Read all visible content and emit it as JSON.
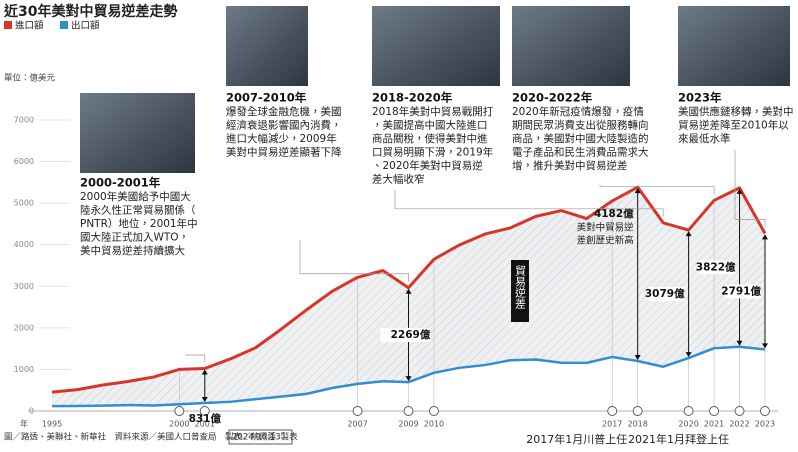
{
  "chart_data": {
    "type": "line",
    "title": "近30年美對中貿易逆差走勢",
    "unit_label": "單位：億美元",
    "x_label": "年",
    "x": [
      1995,
      1996,
      1997,
      1998,
      1999,
      2000,
      2001,
      2002,
      2003,
      2004,
      2005,
      2006,
      2007,
      2008,
      2009,
      2010,
      2011,
      2012,
      2013,
      2014,
      2015,
      2016,
      2017,
      2018,
      2019,
      2020,
      2021,
      2022,
      2023
    ],
    "series": [
      {
        "name": "進口額",
        "color": "#d7352a",
        "values": [
          455,
          515,
          626,
          712,
          818,
          1000,
          1023,
          1252,
          1524,
          1967,
          2435,
          2878,
          3215,
          3378,
          2964,
          3650,
          3994,
          4256,
          4404,
          4682,
          4822,
          4629,
          5054,
          5385,
          4527,
          4352,
          5065,
          5368,
          4272
        ]
      },
      {
        "name": "出口額",
        "color": "#2f8fcf",
        "values": [
          117,
          120,
          128,
          143,
          131,
          162,
          192,
          221,
          284,
          347,
          412,
          553,
          652,
          715,
          695,
          919,
          1039,
          1105,
          1220,
          1240,
          1160,
          1158,
          1300,
          1203,
          1065,
          1273,
          1511,
          1546,
          1481
        ]
      }
    ],
    "xlim": [
      1995,
      2023
    ],
    "xticks": [
      1995,
      2000,
      2001,
      2007,
      2009,
      2010,
      2017,
      2018,
      2020,
      2021,
      2022,
      2023
    ],
    "ylim": [
      0,
      7000
    ],
    "yticks": [
      0,
      1000,
      2000,
      3000,
      4000,
      5000,
      6000,
      7000
    ],
    "grid": true,
    "area_label": "貿易逆差",
    "gaps": [
      {
        "x": 2001,
        "value": 831,
        "label": "831億"
      },
      {
        "x": 2009,
        "value": 2269,
        "label": "2269億"
      },
      {
        "x": 2018,
        "value": 4182,
        "label": "4182億",
        "note": [
          "美對中貿易逆",
          "差創歷史新高"
        ]
      },
      {
        "x": 2020,
        "value": 3079,
        "label": "3079億"
      },
      {
        "x": 2022,
        "value": 3822,
        "label": "3822億"
      },
      {
        "x": 2023,
        "value": 2791,
        "label": "2791億"
      }
    ],
    "annotations": [
      {
        "x": 2001,
        "title": "2000-2001年",
        "lines": [
          "2000年美國給予中國大",
          "陸永久性正常貿易關係（",
          "PNTR）地位，2001年中",
          "國大陸正式加入WTO，",
          "美中貿易逆差持續擴大"
        ]
      },
      {
        "x": 2009,
        "title": "2007-2010年",
        "lines": [
          "爆發全球金融危機，美國",
          "經濟衰退影響國內消費，",
          "進口大幅減少，2009年",
          "美對中貿易逆差顯著下降"
        ]
      },
      {
        "x": 2019,
        "title": "2018-2020年",
        "lines": [
          "2018年美對中貿易戰開打",
          "，美國提高中國大陸進口",
          "商品關稅，使得美對中進",
          "口貿易明顯下滑，2019年",
          "、2020年美對中貿易逆",
          "差大幅收窄"
        ]
      },
      {
        "x": 2021,
        "title": "2020-2022年",
        "lines": [
          "2020年新冠疫情爆發，疫情",
          "期間民眾消費支出從服務轉向",
          "商品，美國對中國大陸製造的",
          "電子產品和民生消費品需求大",
          "增，推升美對中貿易逆差"
        ]
      },
      {
        "x": 2023,
        "title": "2023年",
        "lines": [
          "美國供應鏈移轉，美對中",
          "貿易逆差降至2010年以",
          "來最低水準"
        ]
      }
    ],
    "eras": [
      {
        "x": 2017,
        "label": "2017年1月川普上任"
      },
      {
        "x": 2021,
        "label": "2021年1月拜登上任"
      }
    ],
    "source": "圖／路透、美聯社、新華社　資料來源／美國人口普查局　製表／蔡佩蓉",
    "date_stamp": "2024.10.13製表"
  }
}
